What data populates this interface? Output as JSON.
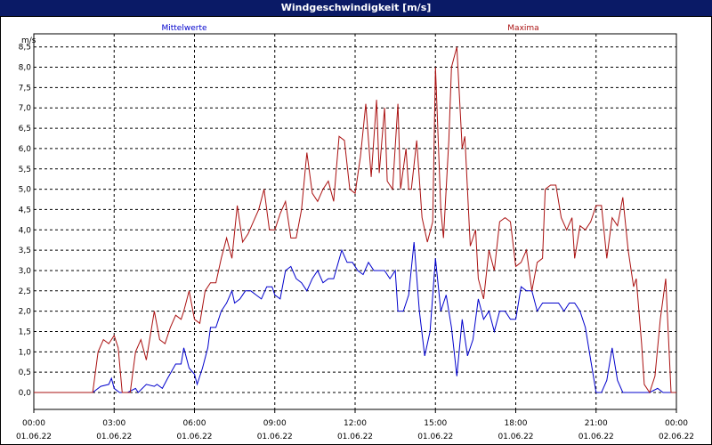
{
  "chart_data": {
    "type": "line",
    "title": "Windgeschwindigkeit [m/s]",
    "ylabel": "m/s",
    "ylim": [
      0,
      8.8
    ],
    "y_ticks": [
      "0,0",
      "0,5",
      "1,0",
      "1,5",
      "2,0",
      "2,5",
      "3,0",
      "3,5",
      "4,0",
      "4,5",
      "5,0",
      "5,5",
      "6,0",
      "6,5",
      "7,0",
      "7,5",
      "8,0",
      "8,5"
    ],
    "x_range": [
      0,
      24
    ],
    "x_ticks": [
      {
        "time": "00:00",
        "date": "01.06.22"
      },
      {
        "time": "03:00",
        "date": "01.06.22"
      },
      {
        "time": "06:00",
        "date": "01.06.22"
      },
      {
        "time": "09:00",
        "date": "01.06.22"
      },
      {
        "time": "12:00",
        "date": "01.06.22"
      },
      {
        "time": "15:00",
        "date": "01.06.22"
      },
      {
        "time": "18:00",
        "date": "01.06.22"
      },
      {
        "time": "21:00",
        "date": "01.06.22"
      },
      {
        "time": "00:00",
        "date": "02.06.22"
      }
    ],
    "grid": true,
    "series": [
      {
        "name": "Mittelwerte",
        "color": "#0000cc",
        "points": [
          [
            0,
            0
          ],
          [
            2.2,
            0
          ],
          [
            2.5,
            0.15
          ],
          [
            2.8,
            0.2
          ],
          [
            2.9,
            0.35
          ],
          [
            3.0,
            0.1
          ],
          [
            3.2,
            0
          ],
          [
            3.5,
            0
          ],
          [
            3.8,
            0.1
          ],
          [
            3.9,
            0
          ],
          [
            4.2,
            0.2
          ],
          [
            4.5,
            0.15
          ],
          [
            4.6,
            0.2
          ],
          [
            4.8,
            0.1
          ],
          [
            5.0,
            0.35
          ],
          [
            5.3,
            0.7
          ],
          [
            5.5,
            0.7
          ],
          [
            5.6,
            1.1
          ],
          [
            5.8,
            0.6
          ],
          [
            6.0,
            0.45
          ],
          [
            6.1,
            0.2
          ],
          [
            6.3,
            0.6
          ],
          [
            6.5,
            1.1
          ],
          [
            6.6,
            1.6
          ],
          [
            6.8,
            1.6
          ],
          [
            7.0,
            2.0
          ],
          [
            7.2,
            2.2
          ],
          [
            7.4,
            2.5
          ],
          [
            7.5,
            2.2
          ],
          [
            7.7,
            2.3
          ],
          [
            7.9,
            2.5
          ],
          [
            8.1,
            2.5
          ],
          [
            8.3,
            2.4
          ],
          [
            8.5,
            2.3
          ],
          [
            8.7,
            2.6
          ],
          [
            8.9,
            2.6
          ],
          [
            9.0,
            2.4
          ],
          [
            9.2,
            2.3
          ],
          [
            9.4,
            3.0
          ],
          [
            9.6,
            3.1
          ],
          [
            9.8,
            2.8
          ],
          [
            10.0,
            2.7
          ],
          [
            10.2,
            2.5
          ],
          [
            10.4,
            2.8
          ],
          [
            10.6,
            3.0
          ],
          [
            10.8,
            2.7
          ],
          [
            11.0,
            2.8
          ],
          [
            11.2,
            2.8
          ],
          [
            11.5,
            3.5
          ],
          [
            11.7,
            3.2
          ],
          [
            11.9,
            3.2
          ],
          [
            12.1,
            3.0
          ],
          [
            12.3,
            2.9
          ],
          [
            12.5,
            3.2
          ],
          [
            12.7,
            3.0
          ],
          [
            12.9,
            3.0
          ],
          [
            13.1,
            3.0
          ],
          [
            13.3,
            2.8
          ],
          [
            13.5,
            3.0
          ],
          [
            13.6,
            2.0
          ],
          [
            13.8,
            2.0
          ],
          [
            14.0,
            2.4
          ],
          [
            14.2,
            3.7
          ],
          [
            14.4,
            2.0
          ],
          [
            14.6,
            0.9
          ],
          [
            14.8,
            1.5
          ],
          [
            15.0,
            3.3
          ],
          [
            15.2,
            2.0
          ],
          [
            15.4,
            2.4
          ],
          [
            15.6,
            1.6
          ],
          [
            15.8,
            0.4
          ],
          [
            16.0,
            1.8
          ],
          [
            16.2,
            0.9
          ],
          [
            16.4,
            1.3
          ],
          [
            16.6,
            2.3
          ],
          [
            16.8,
            1.8
          ],
          [
            17.0,
            2.0
          ],
          [
            17.2,
            1.5
          ],
          [
            17.4,
            2.0
          ],
          [
            17.6,
            2.0
          ],
          [
            17.8,
            1.8
          ],
          [
            18.0,
            1.8
          ],
          [
            18.2,
            2.6
          ],
          [
            18.4,
            2.5
          ],
          [
            18.6,
            2.5
          ],
          [
            18.8,
            2.0
          ],
          [
            19.0,
            2.2
          ],
          [
            19.2,
            2.2
          ],
          [
            19.4,
            2.2
          ],
          [
            19.6,
            2.2
          ],
          [
            19.8,
            2.0
          ],
          [
            20.0,
            2.2
          ],
          [
            20.2,
            2.2
          ],
          [
            20.4,
            2.0
          ],
          [
            20.6,
            1.6
          ],
          [
            20.8,
            0.8
          ],
          [
            21.0,
            0
          ],
          [
            21.2,
            0
          ],
          [
            21.4,
            0.3
          ],
          [
            21.6,
            1.1
          ],
          [
            21.8,
            0.3
          ],
          [
            22.0,
            0
          ],
          [
            22.5,
            0
          ],
          [
            23.0,
            0
          ],
          [
            23.3,
            0.1
          ],
          [
            23.5,
            0
          ],
          [
            24.0,
            0
          ]
        ]
      },
      {
        "name": "Maxima",
        "color": "#aa1111",
        "points": [
          [
            0,
            0
          ],
          [
            2.2,
            0
          ],
          [
            2.4,
            1.0
          ],
          [
            2.6,
            1.3
          ],
          [
            2.8,
            1.2
          ],
          [
            3.0,
            1.4
          ],
          [
            3.15,
            1.1
          ],
          [
            3.3,
            0
          ],
          [
            3.6,
            0
          ],
          [
            3.8,
            1.0
          ],
          [
            4.0,
            1.3
          ],
          [
            4.2,
            0.8
          ],
          [
            4.5,
            2.0
          ],
          [
            4.7,
            1.3
          ],
          [
            4.9,
            1.2
          ],
          [
            5.1,
            1.6
          ],
          [
            5.3,
            1.9
          ],
          [
            5.5,
            1.8
          ],
          [
            5.6,
            2.0
          ],
          [
            5.8,
            2.5
          ],
          [
            6.0,
            1.8
          ],
          [
            6.2,
            1.7
          ],
          [
            6.4,
            2.5
          ],
          [
            6.6,
            2.7
          ],
          [
            6.8,
            2.7
          ],
          [
            7.0,
            3.3
          ],
          [
            7.2,
            3.8
          ],
          [
            7.4,
            3.3
          ],
          [
            7.6,
            4.6
          ],
          [
            7.8,
            3.7
          ],
          [
            8.0,
            3.9
          ],
          [
            8.2,
            4.2
          ],
          [
            8.4,
            4.5
          ],
          [
            8.6,
            5.0
          ],
          [
            8.8,
            4.0
          ],
          [
            9.0,
            4.0
          ],
          [
            9.2,
            4.4
          ],
          [
            9.4,
            4.7
          ],
          [
            9.6,
            3.8
          ],
          [
            9.8,
            3.8
          ],
          [
            10.0,
            4.5
          ],
          [
            10.2,
            5.9
          ],
          [
            10.4,
            4.9
          ],
          [
            10.6,
            4.7
          ],
          [
            10.8,
            5.0
          ],
          [
            11.0,
            5.2
          ],
          [
            11.2,
            4.7
          ],
          [
            11.4,
            6.3
          ],
          [
            11.6,
            6.2
          ],
          [
            11.8,
            5.0
          ],
          [
            12.0,
            4.9
          ],
          [
            12.2,
            5.8
          ],
          [
            12.4,
            7.1
          ],
          [
            12.6,
            5.3
          ],
          [
            12.8,
            7.2
          ],
          [
            12.9,
            5.4
          ],
          [
            13.1,
            7.0
          ],
          [
            13.2,
            5.2
          ],
          [
            13.4,
            5.0
          ],
          [
            13.6,
            7.1
          ],
          [
            13.7,
            5.0
          ],
          [
            13.9,
            6.0
          ],
          [
            14.0,
            5.0
          ],
          [
            14.1,
            5.0
          ],
          [
            14.3,
            6.2
          ],
          [
            14.5,
            4.3
          ],
          [
            14.7,
            3.7
          ],
          [
            14.9,
            4.2
          ],
          [
            15.0,
            8.0
          ],
          [
            15.2,
            4.5
          ],
          [
            15.3,
            3.8
          ],
          [
            15.5,
            6.2
          ],
          [
            15.6,
            8.0
          ],
          [
            15.8,
            8.5
          ],
          [
            16.0,
            6.0
          ],
          [
            16.1,
            6.3
          ],
          [
            16.3,
            3.6
          ],
          [
            16.5,
            4.0
          ],
          [
            16.6,
            2.8
          ],
          [
            16.8,
            2.3
          ],
          [
            17.0,
            3.5
          ],
          [
            17.2,
            3.0
          ],
          [
            17.4,
            4.2
          ],
          [
            17.6,
            4.3
          ],
          [
            17.8,
            4.2
          ],
          [
            18.0,
            3.1
          ],
          [
            18.2,
            3.2
          ],
          [
            18.4,
            3.5
          ],
          [
            18.6,
            2.5
          ],
          [
            18.8,
            3.2
          ],
          [
            19.0,
            3.3
          ],
          [
            19.1,
            5.0
          ],
          [
            19.3,
            5.1
          ],
          [
            19.5,
            5.1
          ],
          [
            19.7,
            4.3
          ],
          [
            19.9,
            4.0
          ],
          [
            20.1,
            4.3
          ],
          [
            20.2,
            3.3
          ],
          [
            20.4,
            4.1
          ],
          [
            20.6,
            4.0
          ],
          [
            20.8,
            4.2
          ],
          [
            21.0,
            4.6
          ],
          [
            21.2,
            4.6
          ],
          [
            21.4,
            3.3
          ],
          [
            21.6,
            4.3
          ],
          [
            21.8,
            4.1
          ],
          [
            22.0,
            4.8
          ],
          [
            22.2,
            3.5
          ],
          [
            22.4,
            2.6
          ],
          [
            22.5,
            2.8
          ],
          [
            22.6,
            2.0
          ],
          [
            22.7,
            1.2
          ],
          [
            22.8,
            0.2
          ],
          [
            23.0,
            0
          ],
          [
            23.2,
            0.4
          ],
          [
            23.4,
            1.8
          ],
          [
            23.6,
            2.8
          ],
          [
            23.8,
            0
          ],
          [
            24.0,
            0
          ]
        ]
      }
    ]
  }
}
